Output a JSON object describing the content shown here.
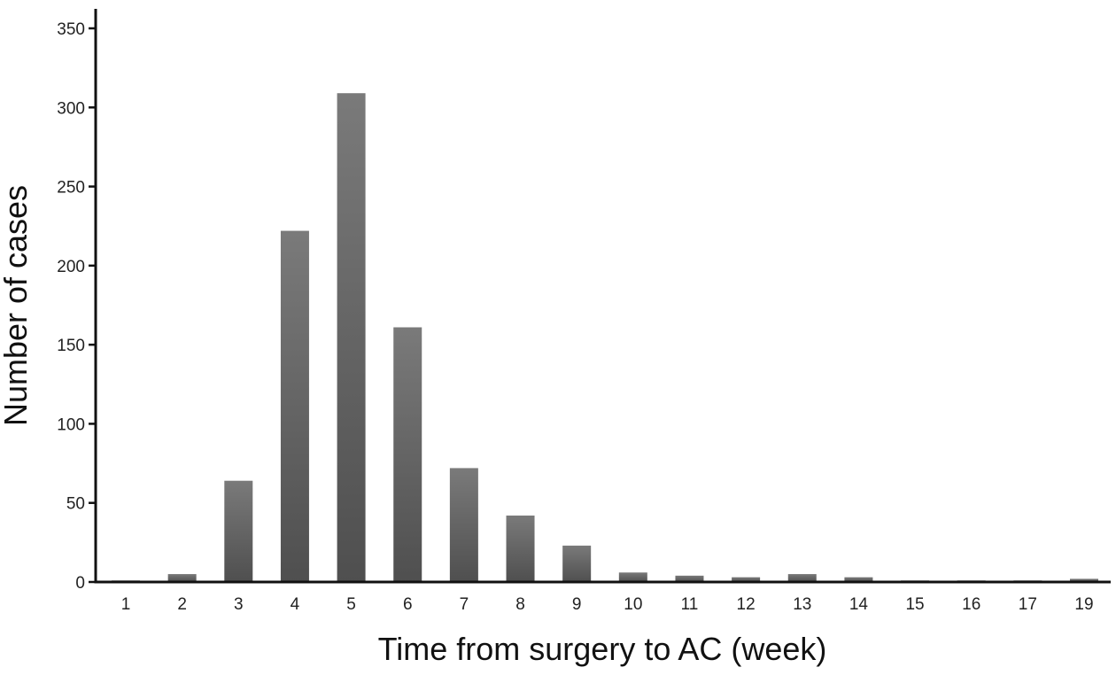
{
  "chart_data": {
    "type": "bar",
    "title": "",
    "xlabel": "Time from surgery to AC (week)",
    "ylabel": "Number of cases",
    "categories": [
      "1",
      "2",
      "3",
      "4",
      "5",
      "6",
      "7",
      "8",
      "9",
      "10",
      "11",
      "12",
      "13",
      "14",
      "15",
      "16",
      "17",
      "19"
    ],
    "values": [
      1,
      5,
      64,
      222,
      309,
      161,
      72,
      42,
      23,
      6,
      4,
      3,
      5,
      3,
      1,
      1,
      1,
      2
    ],
    "ylim": [
      0,
      350
    ],
    "yticks": [
      0,
      50,
      100,
      150,
      200,
      250,
      300,
      350
    ],
    "grid": false,
    "bar_color_top": "#7a7a7a",
    "bar_color_bottom": "#4f4f4f",
    "axis_color": "#111111"
  }
}
